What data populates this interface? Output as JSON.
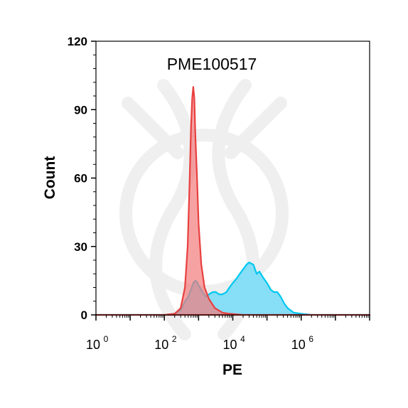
{
  "chart_data": {
    "type": "area",
    "title": "PME100517",
    "xlabel": "PE",
    "ylabel": "Count",
    "x_scale": "log",
    "xlim": [
      1,
      100000000
    ],
    "ylim": [
      0,
      120
    ],
    "x_ticks": [
      {
        "base": "10",
        "exp": "0"
      },
      {
        "base": "10",
        "exp": "2"
      },
      {
        "base": "10",
        "exp": "4"
      },
      {
        "base": "10",
        "exp": "6"
      }
    ],
    "y_ticks": [
      "0",
      "30",
      "60",
      "90",
      "120"
    ],
    "grid": false,
    "legend": "none",
    "series": [
      {
        "color": "#00c8f0",
        "fill": "#7fdcf7",
        "points": [
          [
            1,
            0
          ],
          [
            100,
            0
          ],
          [
            200,
            0.5
          ],
          [
            300,
            2
          ],
          [
            400,
            6
          ],
          [
            500,
            8
          ],
          [
            600,
            11
          ],
          [
            700,
            14
          ],
          [
            800,
            15
          ],
          [
            900,
            14.5
          ],
          [
            1000,
            13
          ],
          [
            1300,
            10
          ],
          [
            1600,
            8
          ],
          [
            2000,
            9
          ],
          [
            2600,
            10
          ],
          [
            3200,
            10
          ],
          [
            4000,
            9
          ],
          [
            5000,
            9
          ],
          [
            6500,
            10
          ],
          [
            8000,
            12
          ],
          [
            10000,
            14
          ],
          [
            13000,
            16
          ],
          [
            16000,
            18
          ],
          [
            20000,
            20
          ],
          [
            25000,
            22
          ],
          [
            30000,
            23
          ],
          [
            40000,
            22
          ],
          [
            50000,
            18
          ],
          [
            60000,
            19
          ],
          [
            80000,
            16
          ],
          [
            100000,
            14
          ],
          [
            130000,
            11
          ],
          [
            160000,
            10
          ],
          [
            200000,
            10
          ],
          [
            250000,
            8
          ],
          [
            320000,
            5
          ],
          [
            400000,
            3
          ],
          [
            600000,
            1
          ],
          [
            1000000,
            0.5
          ],
          [
            2000000,
            0
          ],
          [
            100000000,
            0
          ]
        ]
      },
      {
        "color": "#e8403f",
        "fill": "#f47b7a",
        "points": [
          [
            1,
            0
          ],
          [
            100,
            0
          ],
          [
            200,
            0.5
          ],
          [
            300,
            3
          ],
          [
            400,
            12
          ],
          [
            480,
            30
          ],
          [
            550,
            60
          ],
          [
            600,
            82
          ],
          [
            650,
            95
          ],
          [
            700,
            100
          ],
          [
            750,
            95
          ],
          [
            800,
            80
          ],
          [
            900,
            60
          ],
          [
            1000,
            40
          ],
          [
            1200,
            22
          ],
          [
            1500,
            12
          ],
          [
            2000,
            7
          ],
          [
            3000,
            3
          ],
          [
            5000,
            1
          ],
          [
            8000,
            0.5
          ],
          [
            20000,
            0
          ],
          [
            100000000,
            0
          ]
        ]
      }
    ]
  }
}
